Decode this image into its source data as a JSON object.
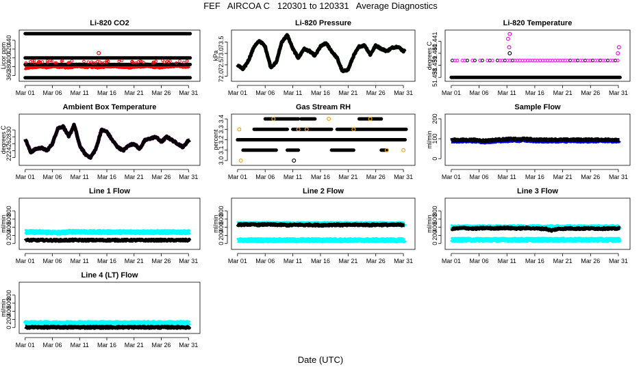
{
  "header": {
    "title": "FEF   AIRCOA C   120301 to 120331   Average Diagnostics",
    "x_caption": "Date (UTC)"
  },
  "chart_data": [
    {
      "type": "scatter",
      "title": "Li-820 CO2",
      "ylabel": "Licor ppm",
      "x_ticks": [
        "Mar 01",
        "Mar 06",
        "Mar 11",
        "Mar 16",
        "Mar 21",
        "Mar 26",
        "Mar 31"
      ],
      "y_ticks": [
        "360",
        "380",
        "400",
        "420",
        "440"
      ],
      "ylim": [
        353,
        457
      ],
      "series": [
        {
          "name": "line-455",
          "color": "#000000",
          "kind": "flat",
          "value": 455
        },
        {
          "name": "line-400",
          "color": "#000000",
          "kind": "flat",
          "value": 400
        },
        {
          "name": "line-355",
          "color": "#000000",
          "kind": "flat",
          "value": 355
        },
        {
          "name": "red-band",
          "color": "#ff0000",
          "kind": "band",
          "values": [
            378,
            380,
            381,
            382,
            380,
            383,
            382,
            381,
            380,
            382,
            383,
            381,
            382,
            380,
            381,
            382,
            383,
            382,
            381,
            380,
            381,
            382,
            383,
            382,
            381,
            380,
            382,
            383,
            384,
            382,
            381
          ]
        },
        {
          "name": "black-band",
          "color": "#000000",
          "kind": "flat",
          "value": 385
        }
      ],
      "outliers": [
        {
          "x": 13.5,
          "y": 411,
          "color": "#ff0000"
        }
      ]
    },
    {
      "type": "line",
      "title": "Li-820 Pressure",
      "ylabel": "kPa",
      "x_ticks": [
        "Mar 01",
        "Mar 06",
        "Mar 11",
        "Mar 16",
        "Mar 21",
        "Mar 26",
        "Mar 31"
      ],
      "y_ticks": [
        "72.0",
        "72.5",
        "73.0",
        "73.5"
      ],
      "ylim": [
        71.9,
        73.9
      ],
      "series": [
        {
          "name": "pressure",
          "color": "#000000",
          "values": [
            72.5,
            72.3,
            72.7,
            73.3,
            73.55,
            73.3,
            72.4,
            72.6,
            73.5,
            73.8,
            73.2,
            72.8,
            73.2,
            73.1,
            72.9,
            73.3,
            73.45,
            73.1,
            72.8,
            72.2,
            72.3,
            72.9,
            73.3,
            73.35,
            72.95,
            73.35,
            73.2,
            73.1,
            73.25,
            73.3,
            73.1
          ]
        }
      ]
    },
    {
      "type": "scatter",
      "title": "Li-820 Temperature",
      "ylabel": "degrees C",
      "x_ticks": [
        "Mar 01",
        "Mar 06",
        "Mar 11",
        "Mar 16",
        "Mar 21",
        "Mar 26",
        "Mar 31"
      ],
      "y_ticks": [
        "51.438",
        "51.439",
        "51.440",
        "51.441"
      ],
      "ylim": [
        51.4379,
        51.4417
      ],
      "series": [
        {
          "name": "baseline",
          "color": "#000000",
          "kind": "flat",
          "value": 51.438
        },
        {
          "name": "upper-level",
          "color": "#ff00ff",
          "kind": "dotted",
          "value": 51.4394
        }
      ],
      "outliers": [
        {
          "x": 10.5,
          "y": 51.4416,
          "color": "#ff00ff"
        },
        {
          "x": 10.2,
          "y": 51.4412,
          "color": "#ff00ff"
        },
        {
          "x": 10.4,
          "y": 51.4405,
          "color": "#ff00ff"
        },
        {
          "x": 10.5,
          "y": 51.44,
          "color": "#000000"
        },
        {
          "x": 29.9,
          "y": 51.44,
          "color": "#ff00ff"
        },
        {
          "x": 30.1,
          "y": 51.4405,
          "color": "#ff00ff"
        }
      ]
    },
    {
      "type": "line",
      "title": "Ambient Box Temperature",
      "ylabel": "degrees C",
      "x_ticks": [
        "Mar 01",
        "Mar 06",
        "Mar 11",
        "Mar 16",
        "Mar 21",
        "Mar 26",
        "Mar 31"
      ],
      "y_ticks": [
        "22",
        "24",
        "26",
        "28",
        "30"
      ],
      "ylim": [
        20.5,
        33.8
      ],
      "series": [
        {
          "name": "box-temp",
          "color": "#000000",
          "values": [
            27.5,
            23.5,
            24.5,
            24.8,
            24,
            26,
            30.5,
            31,
            28,
            31.5,
            25.5,
            23,
            22,
            24.5,
            30,
            29.5,
            27,
            25,
            24,
            25.5,
            26,
            24.5,
            27,
            27.5,
            28,
            26.5,
            28,
            27,
            26,
            25,
            27
          ]
        }
      ]
    },
    {
      "type": "scatter",
      "title": "Gas Stream RH",
      "ylabel": "percent",
      "x_ticks": [
        "Mar 01",
        "Mar 06",
        "Mar 11",
        "Mar 16",
        "Mar 21",
        "Mar 26",
        "Mar 31"
      ],
      "y_ticks": [
        "3.0",
        "3.1",
        "3.2",
        "3.3",
        "3.4"
      ],
      "ylim": [
        2.98,
        3.42
      ],
      "series": [
        {
          "name": "level-3.4",
          "color": "#000000",
          "kind": "segments",
          "value": 3.4,
          "ranges": [
            [
              5,
              11
            ],
            [
              11.5,
              14
            ],
            [
              22,
              26
            ]
          ]
        },
        {
          "name": "level-3.3",
          "color": "#000000",
          "kind": "segments",
          "value": 3.3,
          "ranges": [
            [
              3,
              9
            ],
            [
              10,
              17
            ],
            [
              18,
              30.5
            ]
          ]
        },
        {
          "name": "level-3.2",
          "color": "#000000",
          "kind": "flat",
          "value": 3.2
        },
        {
          "name": "level-3.1",
          "color": "#000000",
          "kind": "segments",
          "value": 3.1,
          "ranges": [
            [
              1,
              7
            ],
            [
              9,
              11
            ],
            [
              17,
              21
            ],
            [
              26,
              27
            ]
          ]
        }
      ],
      "outliers": [
        {
          "x": 0.3,
          "y": 3.3,
          "color": "#ffa500"
        },
        {
          "x": 0.6,
          "y": 3.0,
          "color": "#ffa500"
        },
        {
          "x": 10.2,
          "y": 3.0,
          "color": "#000000"
        },
        {
          "x": 6.5,
          "y": 3.4,
          "color": "#ffa500"
        },
        {
          "x": 11,
          "y": 3.3,
          "color": "#ffa500"
        },
        {
          "x": 12.5,
          "y": 3.3,
          "color": "#ffa500"
        },
        {
          "x": 16.5,
          "y": 3.4,
          "color": "#ffa500"
        },
        {
          "x": 21,
          "y": 3.3,
          "color": "#ffa500"
        },
        {
          "x": 24,
          "y": 3.4,
          "color": "#ffa500"
        },
        {
          "x": 27,
          "y": 3.1,
          "color": "#ffa500"
        },
        {
          "x": 30,
          "y": 3.1,
          "color": "#ffa500"
        }
      ]
    },
    {
      "type": "scatter",
      "title": "Sample Flow",
      "ylabel": "ml/min",
      "x_ticks": [
        "Mar 01",
        "Mar 06",
        "Mar 11",
        "Mar 16",
        "Mar 21",
        "Mar 26",
        "Mar 31"
      ],
      "y_ticks": [
        "0",
        "100",
        "200"
      ],
      "ylim": [
        -20,
        210
      ],
      "series": [
        {
          "name": "sample-blue",
          "color": "#0000ff",
          "kind": "band",
          "values": [
            88,
            88,
            88,
            88,
            88,
            86,
            84,
            86,
            88,
            89,
            90,
            92,
            90,
            92,
            91,
            88,
            88,
            88,
            88,
            88,
            87,
            88,
            88,
            88,
            88,
            88,
            88,
            88,
            88,
            88,
            88
          ]
        },
        {
          "name": "sample-black",
          "color": "#000000",
          "kind": "band",
          "values": [
            94,
            94,
            94,
            94,
            94,
            92,
            90,
            92,
            95,
            96,
            98,
            99,
            97,
            99,
            98,
            95,
            95,
            95,
            95,
            95,
            94,
            95,
            95,
            95,
            95,
            95,
            95,
            95,
            95,
            95,
            95
          ]
        }
      ]
    },
    {
      "type": "scatter",
      "title": "Line 1 Flow",
      "ylabel": "ml/min",
      "x_ticks": [
        "Mar 01",
        "Mar 06",
        "Mar 11",
        "Mar 16",
        "Mar 21",
        "Mar 26",
        "Mar 31"
      ],
      "y_ticks": [
        "0",
        "200",
        "400",
        "600",
        "800"
      ],
      "ylim": [
        -80,
        1050
      ],
      "series": [
        {
          "name": "line1-cyan",
          "color": "#00ffff",
          "kind": "band",
          "values": [
            280,
            280,
            280,
            280,
            275,
            270,
            265,
            270,
            285,
            290,
            290,
            285,
            280,
            280,
            285,
            280,
            280,
            280,
            280,
            280,
            280,
            280,
            280,
            280,
            280,
            280,
            280,
            280,
            280,
            280,
            280
          ]
        },
        {
          "name": "line1-black",
          "color": "#000000",
          "kind": "band",
          "values": [
            80,
            80,
            80,
            80,
            80,
            78,
            76,
            78,
            80,
            82,
            82,
            80,
            80,
            80,
            80,
            80,
            80,
            80,
            80,
            80,
            80,
            80,
            80,
            80,
            80,
            80,
            80,
            80,
            80,
            80,
            80
          ]
        }
      ]
    },
    {
      "type": "scatter",
      "title": "Line 2 Flow",
      "ylabel": "ml/min",
      "x_ticks": [
        "Mar 01",
        "Mar 06",
        "Mar 11",
        "Mar 16",
        "Mar 21",
        "Mar 26",
        "Mar 31"
      ],
      "y_ticks": [
        "0",
        "200",
        "400",
        "600",
        "800"
      ],
      "ylim": [
        -80,
        1050
      ],
      "series": [
        {
          "name": "line2-cyan-high",
          "color": "#00ffff",
          "kind": "band",
          "values": [
            480,
            480,
            480,
            480,
            480,
            480,
            480,
            480,
            480,
            480,
            480,
            480,
            480,
            480,
            480,
            480,
            480,
            480,
            480,
            480,
            480,
            480,
            480,
            480,
            480,
            480,
            480,
            480,
            480,
            480,
            480
          ]
        },
        {
          "name": "line2-black",
          "color": "#000000",
          "kind": "band",
          "values": [
            460,
            465,
            470,
            465,
            460,
            470,
            465,
            460,
            460,
            450,
            455,
            460,
            455,
            460,
            455,
            450,
            455,
            460,
            460,
            455,
            455,
            460,
            460,
            460,
            455,
            460,
            460,
            460,
            455,
            460,
            460
          ]
        },
        {
          "name": "line2-cyan-low",
          "color": "#00ffff",
          "kind": "band",
          "values": [
            80,
            80,
            80,
            80,
            80,
            80,
            80,
            80,
            80,
            80,
            80,
            80,
            80,
            80,
            80,
            80,
            80,
            80,
            80,
            80,
            80,
            80,
            80,
            80,
            80,
            80,
            80,
            80,
            80,
            80,
            80
          ]
        }
      ]
    },
    {
      "type": "scatter",
      "title": "Line 3 Flow",
      "ylabel": "ml/min",
      "x_ticks": [
        "Mar 01",
        "Mar 06",
        "Mar 11",
        "Mar 16",
        "Mar 21",
        "Mar 26",
        "Mar 31"
      ],
      "y_ticks": [
        "0",
        "200",
        "400",
        "600",
        "800"
      ],
      "ylim": [
        -80,
        1050
      ],
      "series": [
        {
          "name": "line3-cyan-high",
          "color": "#00ffff",
          "kind": "band",
          "values": [
            400,
            400,
            400,
            400,
            400,
            400,
            400,
            400,
            400,
            400,
            400,
            400,
            400,
            400,
            400,
            400,
            400,
            400,
            400,
            400,
            400,
            400,
            400,
            400,
            400,
            400,
            400,
            400,
            400,
            400,
            400
          ]
        },
        {
          "name": "line3-black",
          "color": "#000000",
          "kind": "band",
          "values": [
            360,
            370,
            380,
            375,
            365,
            370,
            380,
            375,
            370,
            385,
            380,
            375,
            370,
            375,
            380,
            370,
            365,
            360,
            320,
            355,
            365,
            370,
            370,
            365,
            370,
            370,
            370,
            365,
            370,
            365,
            370
          ]
        },
        {
          "name": "line3-cyan-low",
          "color": "#00ffff",
          "kind": "band",
          "values": [
            90,
            90,
            90,
            90,
            90,
            90,
            90,
            90,
            90,
            90,
            90,
            90,
            90,
            90,
            90,
            90,
            90,
            90,
            90,
            90,
            90,
            90,
            90,
            90,
            90,
            90,
            90,
            90,
            90,
            90,
            90
          ]
        }
      ]
    },
    {
      "type": "scatter",
      "title": "Line 4 (LT) Flow",
      "ylabel": "ml/min",
      "x_ticks": [
        "Mar 01",
        "Mar 06",
        "Mar 11",
        "Mar 16",
        "Mar 21",
        "Mar 26",
        "Mar 31"
      ],
      "y_ticks": [
        "0",
        "200",
        "400",
        "600",
        "800"
      ],
      "ylim": [
        -80,
        1050
      ],
      "series": [
        {
          "name": "line4-cyan",
          "color": "#00ffff",
          "kind": "band",
          "values": [
            110,
            110,
            110,
            110,
            110,
            108,
            105,
            108,
            110,
            112,
            112,
            110,
            110,
            110,
            110,
            110,
            110,
            110,
            110,
            110,
            110,
            110,
            110,
            110,
            110,
            110,
            110,
            110,
            110,
            110,
            110
          ]
        },
        {
          "name": "line4-black",
          "color": "#000000",
          "kind": "band",
          "values": [
            5,
            5,
            5,
            5,
            5,
            5,
            5,
            5,
            5,
            5,
            5,
            5,
            5,
            5,
            5,
            5,
            5,
            5,
            5,
            5,
            5,
            5,
            5,
            5,
            5,
            5,
            5,
            5,
            5,
            5,
            5
          ]
        }
      ]
    }
  ]
}
